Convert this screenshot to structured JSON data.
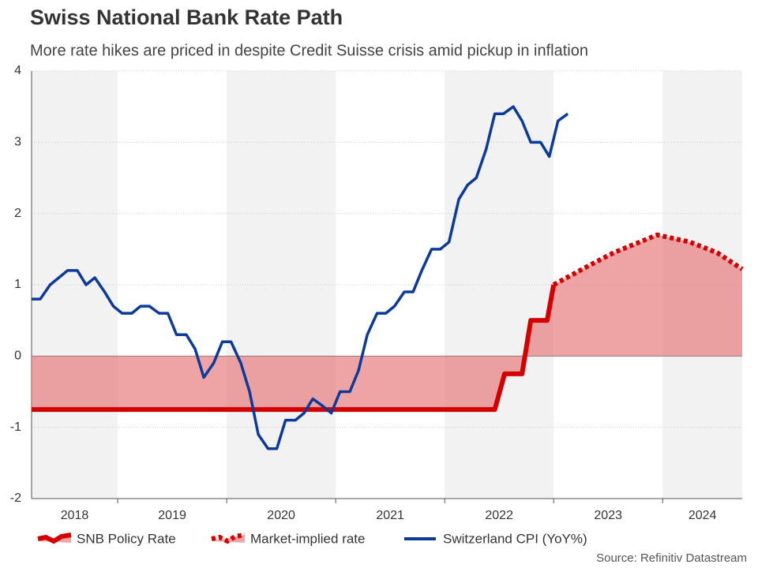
{
  "chart_data": {
    "type": "line",
    "title": "Swiss National Bank Rate Path",
    "subtitle": "More rate hikes are priced in despite Credit Suisse crisis amid pickup in inflation",
    "source": "Source: Refinitiv Datastream",
    "xlim": [
      2018.21,
      2024.73
    ],
    "ylim": [
      -2,
      4
    ],
    "yticks": [
      -2,
      -1,
      0,
      1,
      2,
      3,
      4
    ],
    "xticks": [
      2019,
      2020,
      2021,
      2022,
      2023,
      2024
    ],
    "x_labels": [
      "2018",
      "2019",
      "2020",
      "2021",
      "2022",
      "2023",
      "2024"
    ],
    "grid": true,
    "fill_color": "#e57373",
    "series": [
      {
        "name": "SNB Policy Rate",
        "color": "#d40000",
        "style": "solid",
        "fill": true,
        "x": [
          2018.21,
          2022.46,
          2022.55,
          2022.71,
          2022.79,
          2022.94,
          2023.0
        ],
        "values": [
          -0.75,
          -0.75,
          -0.25,
          -0.25,
          0.5,
          0.5,
          1.0
        ]
      },
      {
        "name": "Market-implied rate",
        "color": "#d40000",
        "style": "dotted",
        "fill": true,
        "x": [
          2023.0,
          2023.3,
          2023.55,
          2023.95,
          2024.25,
          2024.5,
          2024.73
        ],
        "values": [
          1.0,
          1.25,
          1.45,
          1.7,
          1.6,
          1.45,
          1.22
        ]
      },
      {
        "name": "Switzerland CPI (YoY%)",
        "color": "#0b3a99",
        "style": "solid",
        "fill": false,
        "x": [
          2018.21,
          2018.29,
          2018.38,
          2018.46,
          2018.54,
          2018.63,
          2018.71,
          2018.79,
          2018.88,
          2018.96,
          2019.04,
          2019.13,
          2019.21,
          2019.29,
          2019.38,
          2019.46,
          2019.54,
          2019.63,
          2019.71,
          2019.79,
          2019.88,
          2019.96,
          2020.04,
          2020.13,
          2020.21,
          2020.29,
          2020.38,
          2020.46,
          2020.54,
          2020.63,
          2020.71,
          2020.79,
          2020.88,
          2020.96,
          2021.04,
          2021.13,
          2021.21,
          2021.29,
          2021.38,
          2021.46,
          2021.54,
          2021.63,
          2021.71,
          2021.79,
          2021.88,
          2021.96,
          2022.04,
          2022.13,
          2022.21,
          2022.29,
          2022.38,
          2022.46,
          2022.54,
          2022.63,
          2022.71,
          2022.79,
          2022.88,
          2022.96,
          2023.04,
          2023.13
        ],
        "values": [
          0.8,
          0.8,
          1.0,
          1.1,
          1.2,
          1.2,
          1.0,
          1.1,
          0.9,
          0.7,
          0.6,
          0.6,
          0.7,
          0.7,
          0.6,
          0.6,
          0.3,
          0.3,
          0.1,
          -0.3,
          -0.1,
          0.2,
          0.2,
          -0.1,
          -0.5,
          -1.1,
          -1.3,
          -1.3,
          -0.9,
          -0.9,
          -0.8,
          -0.6,
          -0.7,
          -0.8,
          -0.5,
          -0.5,
          -0.2,
          0.3,
          0.6,
          0.6,
          0.7,
          0.9,
          0.9,
          1.2,
          1.5,
          1.5,
          1.6,
          2.2,
          2.4,
          2.5,
          2.9,
          3.4,
          3.4,
          3.5,
          3.3,
          3.0,
          3.0,
          2.8,
          3.3,
          3.4
        ]
      }
    ]
  }
}
